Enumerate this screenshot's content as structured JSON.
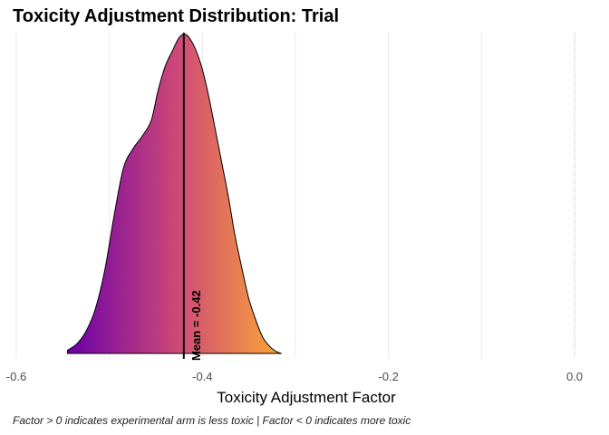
{
  "title": "Toxicity Adjustment Distribution: Trial",
  "caption": "Factor > 0 indicates experimental arm is less toxic | Factor < 0 indicates more toxic",
  "chart_data": {
    "type": "area",
    "title": "Toxicity Adjustment Distribution: Trial",
    "xlabel": "Toxicity Adjustment Factor",
    "ylabel": "",
    "xlim": [
      -0.6,
      0.0
    ],
    "x_ticks": [
      -0.6,
      -0.4,
      -0.2,
      0.0
    ],
    "x_tick_labels": [
      "-0.6",
      "-0.4",
      "-0.2",
      "0.0"
    ],
    "grid": "vertical",
    "reference_line": {
      "x": 0.0,
      "style": "dashed"
    },
    "mean_line": {
      "x": -0.42,
      "label": "Mean = -0.42"
    },
    "fill_gradient": {
      "low": "#6a00a8",
      "mid": "#cc4778",
      "high": "#fca636"
    },
    "density": {
      "x": [
        -0.545,
        -0.535,
        -0.525,
        -0.515,
        -0.505,
        -0.495,
        -0.485,
        -0.475,
        -0.465,
        -0.455,
        -0.448,
        -0.44,
        -0.432,
        -0.425,
        -0.418,
        -0.41,
        -0.402,
        -0.395,
        -0.388,
        -0.38,
        -0.372,
        -0.365,
        -0.357,
        -0.35,
        -0.342,
        -0.335,
        -0.327,
        -0.32,
        -0.315
      ],
      "y": [
        0.01,
        0.03,
        0.07,
        0.14,
        0.26,
        0.43,
        0.58,
        0.64,
        0.68,
        0.73,
        0.82,
        0.9,
        0.95,
        0.99,
        1.0,
        0.97,
        0.91,
        0.83,
        0.73,
        0.61,
        0.49,
        0.37,
        0.26,
        0.17,
        0.1,
        0.05,
        0.02,
        0.005,
        0.0
      ]
    }
  },
  "colors": {
    "outline": "#000000",
    "grid": "#ebebeb",
    "axis_text": "#4d4d4d"
  }
}
